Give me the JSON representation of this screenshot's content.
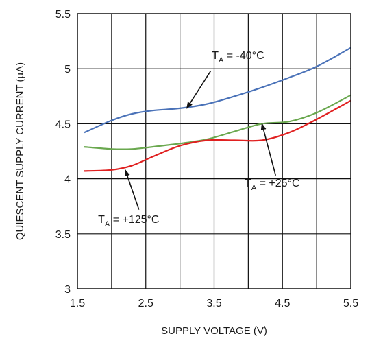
{
  "chart_data": {
    "type": "line",
    "xlabel": "SUPPLY VOLTAGE (V)",
    "ylabel": "QUIESCENT SUPPLY CURRENT (µA)",
    "xlim": [
      1.5,
      5.5
    ],
    "ylim": [
      3,
      5.5
    ],
    "x_ticks": [
      "1.5",
      "2.5",
      "3.5",
      "4.5",
      "5.5"
    ],
    "y_ticks": [
      "3",
      "3.5",
      "4",
      "4.5",
      "5",
      "5.5"
    ],
    "grid": true,
    "colors": {
      "series_-40": "#4a72b8",
      "series_+25": "#6aa84f",
      "series_+125": "#e02020"
    },
    "series": [
      {
        "key": "series_-40",
        "x": [
          1.6,
          2.0,
          2.3,
          2.6,
          3.0,
          3.4,
          3.8,
          4.2,
          4.6,
          5.0,
          5.5
        ],
        "values": [
          4.42,
          4.53,
          4.59,
          4.62,
          4.64,
          4.68,
          4.75,
          4.83,
          4.92,
          5.02,
          5.19
        ]
      },
      {
        "key": "series_+25",
        "x": [
          1.6,
          2.0,
          2.3,
          2.6,
          3.0,
          3.4,
          3.8,
          4.2,
          4.6,
          5.0,
          5.5
        ],
        "values": [
          4.29,
          4.27,
          4.27,
          4.29,
          4.32,
          4.36,
          4.43,
          4.5,
          4.52,
          4.6,
          4.76
        ]
      },
      {
        "key": "series_+125",
        "x": [
          1.6,
          2.0,
          2.3,
          2.6,
          3.0,
          3.4,
          3.8,
          4.2,
          4.6,
          5.0,
          5.5
        ],
        "values": [
          4.07,
          4.08,
          4.12,
          4.2,
          4.3,
          4.35,
          4.35,
          4.35,
          4.42,
          4.54,
          4.71
        ]
      }
    ],
    "annotations": [
      {
        "main": "T",
        "sub": "A",
        "rest": " = -40°C",
        "text_at": [
          3.85,
          5.09
        ],
        "arrow_from": [
          3.45,
          4.98
        ],
        "arrow_to": [
          3.1,
          4.64
        ]
      },
      {
        "main": "T",
        "sub": "A",
        "rest": " = +25°C",
        "text_at": [
          4.35,
          3.93
        ],
        "arrow_from": [
          4.4,
          4.03
        ],
        "arrow_to": [
          4.2,
          4.5
        ]
      },
      {
        "main": "T",
        "sub": "A",
        "rest": " = +125°C",
        "text_at": [
          2.25,
          3.6
        ],
        "arrow_from": [
          2.4,
          3.72
        ],
        "arrow_to": [
          2.2,
          4.08
        ]
      }
    ]
  }
}
